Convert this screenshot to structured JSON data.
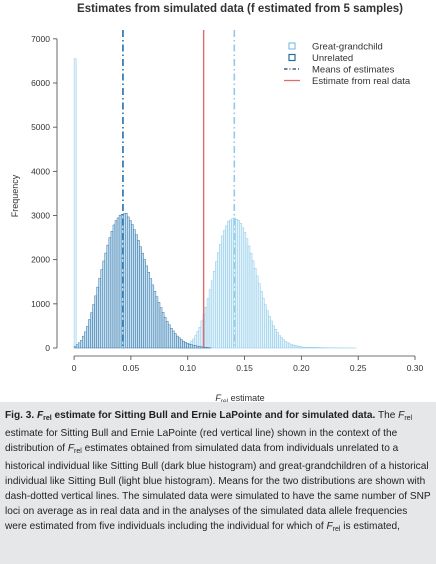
{
  "chart_data": {
    "type": "bar",
    "title": "Estimates from simulated data (f estimated from 5 samples)",
    "xlabel_main": "F",
    "xlabel_sub": "rel",
    "xlabel_rest": " estimate",
    "ylabel": "Frequency",
    "xlim": [
      -0.008,
      0.3
    ],
    "ylim": [
      0,
      7200
    ],
    "xticks": [
      0,
      0.05,
      0.1,
      0.15,
      0.2,
      0.25,
      0.3
    ],
    "xtick_labels": [
      "0",
      "0.05",
      "0.10",
      "0.15",
      "0.20",
      "0.25",
      "0.30"
    ],
    "yticks": [
      0,
      1000,
      2000,
      3000,
      4000,
      5000,
      6000,
      7000
    ],
    "ytick_labels": [
      "0",
      "1000",
      "2000",
      "3000",
      "4000",
      "5000",
      "6000",
      "7000"
    ],
    "bin_width": 0.0018,
    "series": [
      {
        "name": "Great-grandchild",
        "color": "#7ec3e6",
        "fill": "#e4f3fb",
        "points": [
          [
            0,
            6550
          ],
          [
            0.09,
            20
          ],
          [
            0.1,
            90
          ],
          [
            0.105,
            220
          ],
          [
            0.11,
            480
          ],
          [
            0.115,
            900
          ],
          [
            0.12,
            1450
          ],
          [
            0.125,
            2050
          ],
          [
            0.13,
            2580
          ],
          [
            0.135,
            2870
          ],
          [
            0.14,
            2950
          ],
          [
            0.145,
            2870
          ],
          [
            0.15,
            2580
          ],
          [
            0.155,
            2130
          ],
          [
            0.16,
            1650
          ],
          [
            0.165,
            1170
          ],
          [
            0.17,
            780
          ],
          [
            0.175,
            480
          ],
          [
            0.18,
            280
          ],
          [
            0.185,
            150
          ],
          [
            0.19,
            80
          ],
          [
            0.2,
            20
          ],
          [
            0.22,
            5
          ],
          [
            0.25,
            0
          ]
        ]
      },
      {
        "name": "Unrelated",
        "color": "#2a6aa0",
        "fill": "#c4dff0",
        "points": [
          [
            0,
            30
          ],
          [
            0.005,
            150
          ],
          [
            0.01,
            420
          ],
          [
            0.015,
            850
          ],
          [
            0.02,
            1400
          ],
          [
            0.025,
            1950
          ],
          [
            0.03,
            2450
          ],
          [
            0.035,
            2850
          ],
          [
            0.04,
            3020
          ],
          [
            0.045,
            3050
          ],
          [
            0.05,
            2820
          ],
          [
            0.055,
            2500
          ],
          [
            0.06,
            2100
          ],
          [
            0.065,
            1700
          ],
          [
            0.07,
            1300
          ],
          [
            0.075,
            950
          ],
          [
            0.08,
            650
          ],
          [
            0.085,
            430
          ],
          [
            0.09,
            270
          ],
          [
            0.095,
            160
          ],
          [
            0.1,
            90
          ],
          [
            0.11,
            30
          ],
          [
            0.12,
            0
          ]
        ]
      }
    ],
    "vlines": [
      {
        "name": "Means of estimates",
        "x": 0.043,
        "color": "#1f6fb0",
        "dash": "dashdot",
        "width": 1.6
      },
      {
        "name": "Means of estimates",
        "x": 0.141,
        "color": "#8fcbea",
        "dash": "dashdot",
        "width": 1.6
      },
      {
        "name": "Estimate from real data",
        "x": 0.114,
        "color": "#e06b6b",
        "dash": "solid",
        "width": 1.4
      }
    ],
    "legend_position": "top-right",
    "legend": [
      {
        "label": "Great-grandchild",
        "kind": "square",
        "color": "#7ec3e6"
      },
      {
        "label": "Unrelated",
        "kind": "square",
        "color": "#2a6aa0"
      },
      {
        "label": "Means of estimates",
        "kind": "dashdot",
        "color": "#1f3f6a"
      },
      {
        "label": "Estimate from real data",
        "kind": "line",
        "color": "#e06b6b"
      }
    ]
  },
  "caption": {
    "fig_label": "Fig. 3.",
    "head_f": "F",
    "head_sub": "rel",
    "head_rest": " estimate for Sitting Bull and Ernie LaPointe and for simulated data.",
    "body_1": " The ",
    "body_f1": "F",
    "body_sub1": "rel",
    "body_2": " estimate for Sitting Bull and Ernie LaPointe (red vertical line) shown in the context of the distribution of ",
    "body_f2": "F",
    "body_sub2": "rel",
    "body_3": " estimates obtained from simulated data from individuals unrelated to a historical individual like Sitting Bull (dark blue histogram) and great-grandchildren of a historical individual like Sitting Bull (light blue histogram). Means for the two distributions are shown with dash-dotted vertical lines. The simulated data were simulated to have the same number of SNP loci on average as in real data and in the analyses of the simulated data allele frequencies were estimated from five individuals including the individual for which of ",
    "body_f3": "F",
    "body_sub3": "rel",
    "body_4": " is estimated,"
  }
}
